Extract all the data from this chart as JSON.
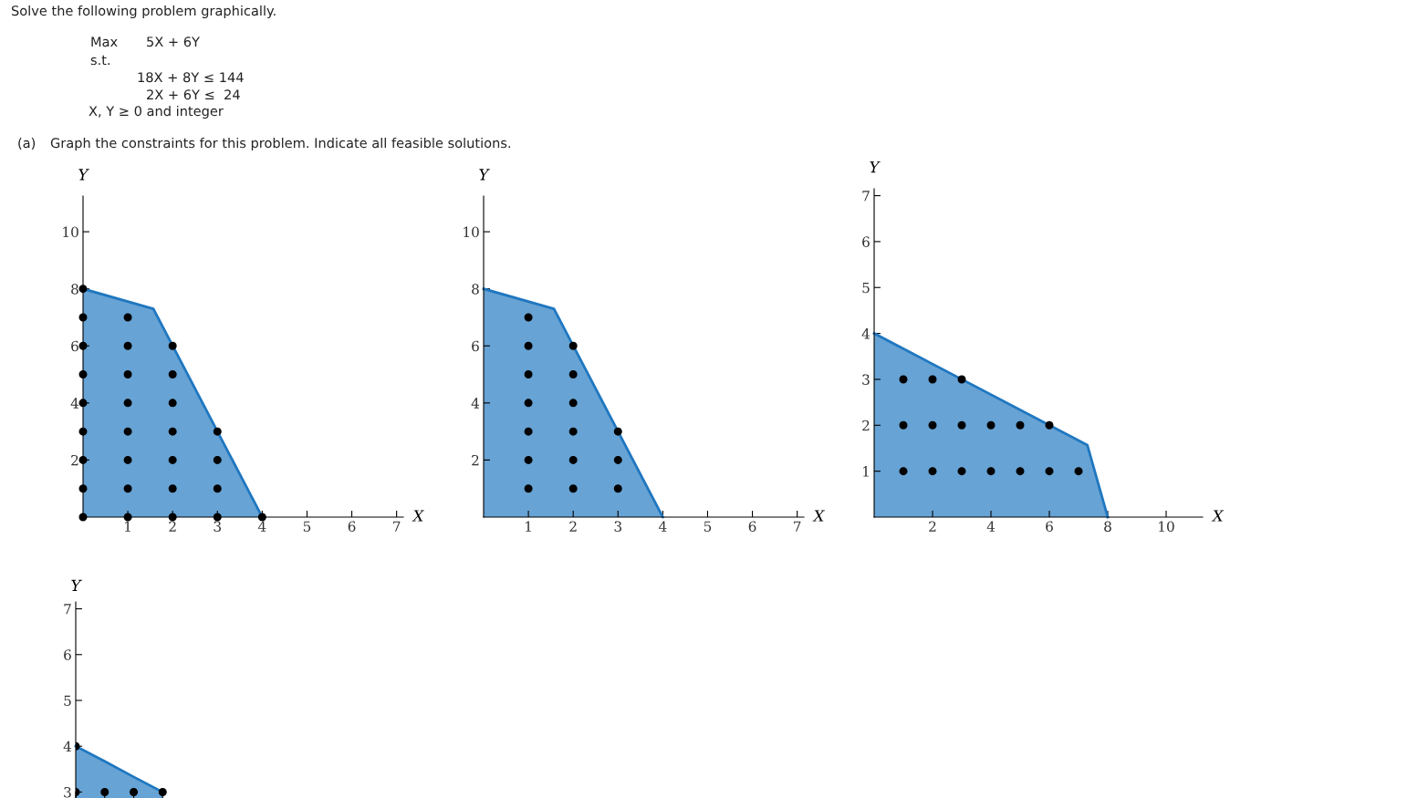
{
  "chart_data": [
    {
      "type": "other",
      "annotations": [
        "Solve the following problem graphically.",
        "Max",
        "5X + 6Y",
        "s.t.",
        "18X + 8Y ≤ 144",
        "2X + 6Y ≤  24",
        "X, Y ≥ 0 and integer",
        "(a)",
        "Graph the constraints for this problem. Indicate all feasible solutions."
      ]
    },
    {
      "type": "area",
      "xlabel": "X",
      "ylabel": "Y",
      "xlim": [
        0,
        7.15
      ],
      "ylim": [
        0,
        11.25
      ],
      "xticks": [
        1,
        2,
        3,
        4,
        5,
        6,
        7
      ],
      "yticks": [
        2,
        4,
        6,
        8,
        10
      ],
      "series": [
        {
          "type": "area",
          "color": "#1f77c0",
          "x": [
            0,
            1.57,
            4
          ],
          "values": [
            8,
            7.3,
            0
          ]
        },
        {
          "type": "scatter",
          "color": "#000000",
          "marker": "circle",
          "x": [
            0,
            0,
            0,
            0,
            0,
            0,
            0,
            0,
            0,
            1,
            1,
            1,
            1,
            1,
            1,
            1,
            1,
            2,
            2,
            2,
            2,
            2,
            2,
            2,
            3,
            3,
            3,
            3,
            4
          ],
          "values": [
            0,
            1,
            2,
            3,
            4,
            5,
            6,
            7,
            8,
            0,
            1,
            2,
            3,
            4,
            5,
            6,
            7,
            0,
            1,
            2,
            3,
            4,
            5,
            6,
            0,
            1,
            2,
            3,
            0
          ]
        }
      ]
    },
    {
      "type": "area",
      "xlabel": "X",
      "ylabel": "Y",
      "xlim": [
        0,
        7.15
      ],
      "ylim": [
        0,
        11.25
      ],
      "xticks": [
        1,
        2,
        3,
        4,
        5,
        6,
        7
      ],
      "yticks": [
        2,
        4,
        6,
        8,
        10
      ],
      "series": [
        {
          "type": "area",
          "color": "#1f77c0",
          "x": [
            0,
            1.57,
            4
          ],
          "values": [
            8,
            7.3,
            0
          ]
        },
        {
          "type": "scatter",
          "color": "#000000",
          "marker": "circle",
          "x": [
            1,
            1,
            1,
            1,
            1,
            1,
            1,
            2,
            2,
            2,
            2,
            2,
            2,
            3,
            3,
            3
          ],
          "values": [
            1,
            2,
            3,
            4,
            5,
            6,
            7,
            1,
            2,
            3,
            4,
            5,
            6,
            1,
            2,
            3
          ]
        }
      ]
    },
    {
      "type": "area",
      "xlabel": "X",
      "ylabel": "Y",
      "xlim": [
        0,
        11.25
      ],
      "ylim": [
        0,
        7.15
      ],
      "xticks": [
        2,
        4,
        6,
        8,
        10
      ],
      "yticks": [
        1,
        2,
        3,
        4,
        5,
        6,
        7
      ],
      "series": [
        {
          "type": "area",
          "color": "#1f77c0",
          "x": [
            0,
            7.3,
            8
          ],
          "values": [
            4,
            1.57,
            0
          ]
        },
        {
          "type": "scatter",
          "color": "#000000",
          "marker": "circle",
          "x": [
            1,
            2,
            3,
            4,
            5,
            6,
            7,
            1,
            2,
            3,
            4,
            5,
            6,
            1,
            2,
            3
          ],
          "values": [
            1,
            1,
            1,
            1,
            1,
            1,
            1,
            2,
            2,
            2,
            2,
            2,
            2,
            3,
            3,
            3
          ]
        }
      ]
    },
    {
      "type": "area",
      "ylabel": "Y",
      "categories": [
        null,
        null,
        null,
        null
      ],
      "ylim": [
        2.87,
        7.15
      ],
      "yticks": [
        3,
        4,
        5,
        6,
        7
      ],
      "tick_labels": "y",
      "series": [
        {
          "type": "area",
          "color": "#1f77c0",
          "values": [
            4,
            3.67,
            3.33,
            3
          ]
        },
        {
          "type": "scatter",
          "color": "#000000",
          "marker": "circle",
          "values": [
            3,
            3,
            3,
            3
          ]
        },
        {
          "type": "scatter",
          "color": "#000000",
          "marker": "circle",
          "values": [
            4,
            null,
            null,
            null
          ]
        }
      ]
    }
  ]
}
